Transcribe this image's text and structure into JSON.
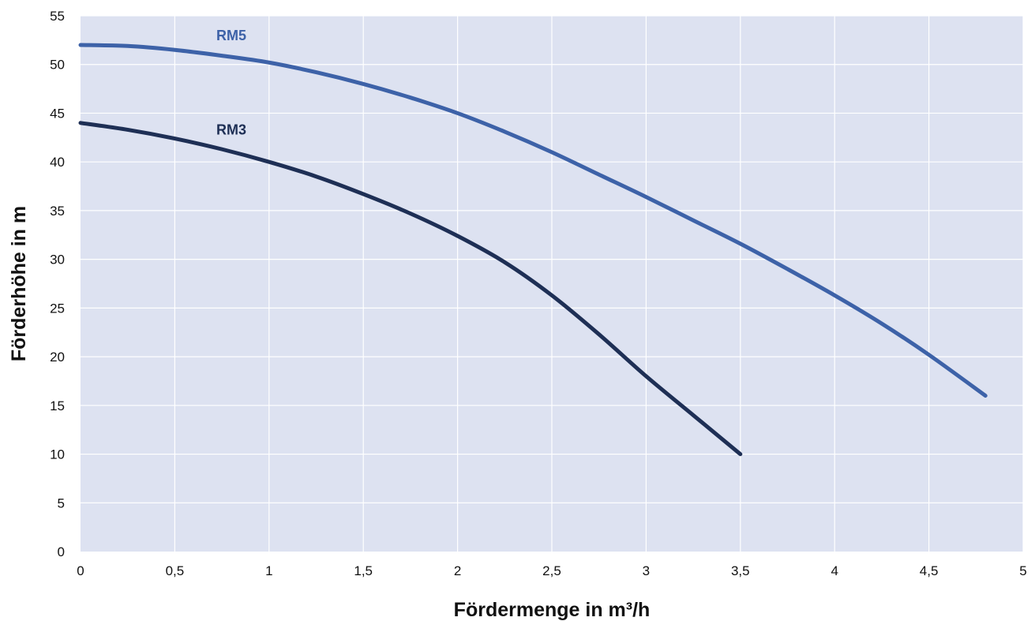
{
  "chart_data": {
    "type": "line",
    "title": "",
    "xlabel": "Fördermenge in m³/h",
    "ylabel": "Förderhöhe in m",
    "xlim": [
      0,
      5
    ],
    "ylim": [
      0,
      55
    ],
    "x_ticks": [
      {
        "value": 0,
        "label": "0"
      },
      {
        "value": 0.5,
        "label": "0,5"
      },
      {
        "value": 1,
        "label": "1"
      },
      {
        "value": 1.5,
        "label": "1,5"
      },
      {
        "value": 2,
        "label": "2"
      },
      {
        "value": 2.5,
        "label": "2,5"
      },
      {
        "value": 3,
        "label": "3"
      },
      {
        "value": 3.5,
        "label": "3,5"
      },
      {
        "value": 4,
        "label": "4"
      },
      {
        "value": 4.5,
        "label": "4,5"
      },
      {
        "value": 5,
        "label": "5"
      }
    ],
    "y_ticks": [
      {
        "value": 0,
        "label": "0"
      },
      {
        "value": 5,
        "label": "5"
      },
      {
        "value": 10,
        "label": "10"
      },
      {
        "value": 15,
        "label": "15"
      },
      {
        "value": 20,
        "label": "20"
      },
      {
        "value": 25,
        "label": "25"
      },
      {
        "value": 30,
        "label": "30"
      },
      {
        "value": 35,
        "label": "35"
      },
      {
        "value": 40,
        "label": "40"
      },
      {
        "value": 45,
        "label": "45"
      },
      {
        "value": 50,
        "label": "50"
      },
      {
        "value": 55,
        "label": "55"
      }
    ],
    "grid": true,
    "legend": "none",
    "plot_background": "#dde2f1",
    "series": [
      {
        "name": "RM5",
        "color": "#3d62a8",
        "label_position": {
          "x": 0.8,
          "y": 52.5
        },
        "x": [
          0,
          0.25,
          0.5,
          0.75,
          1,
          1.25,
          1.5,
          1.75,
          2,
          2.25,
          2.5,
          2.75,
          3,
          3.25,
          3.5,
          3.75,
          4,
          4.25,
          4.5,
          4.8
        ],
        "y": [
          52,
          51.9,
          51.5,
          50.9,
          50.2,
          49.2,
          48,
          46.6,
          45,
          43.1,
          41,
          38.7,
          36.4,
          34,
          31.6,
          29,
          26.3,
          23.4,
          20.2,
          16
        ]
      },
      {
        "name": "RM3",
        "color": "#1e2f55",
        "label_position": {
          "x": 0.8,
          "y": 42.8
        },
        "x": [
          0,
          0.25,
          0.5,
          0.75,
          1,
          1.25,
          1.5,
          1.75,
          2,
          2.25,
          2.5,
          2.75,
          3,
          3.25,
          3.5
        ],
        "y": [
          44,
          43.3,
          42.4,
          41.3,
          40,
          38.5,
          36.7,
          34.7,
          32.4,
          29.7,
          26.3,
          22.3,
          18,
          14,
          10
        ]
      }
    ]
  }
}
